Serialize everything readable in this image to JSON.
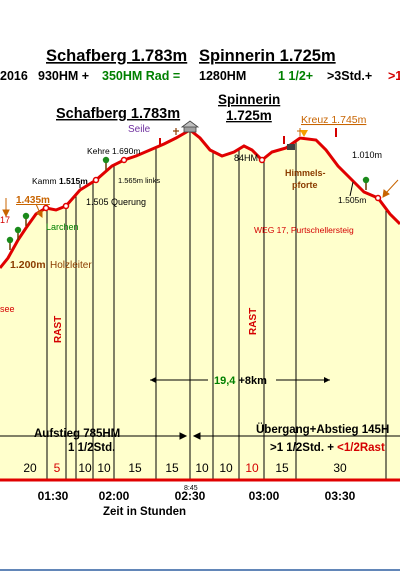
{
  "header": {
    "title_left": "Schafberg 1.783m",
    "title_right": "Spinnerin 1.725m",
    "line2": {
      "year": "2016",
      "hm_up": "930HM +",
      "hm_bike": "350HM Rad =",
      "hm_total": "1280HM",
      "time_green": "1 1/2+",
      "time_black": ">3Std.+",
      "time_red": ">1"
    }
  },
  "profile": {
    "peak1_title": "Schafberg 1.783m",
    "peak2_title_line1": "Spinnerin",
    "peak2_title_line2": "1.725m",
    "labels": {
      "seile": "Seile",
      "kehre": "Kehre 1.690m",
      "kamm_prefix": "Kamm",
      "kamm_value": "1.515m",
      "links": "1.565m links",
      "querung": "1.505 Querung",
      "h1435": "1.435m",
      "n17": "17",
      "larchen": "Larchen",
      "h1200": "1.200m",
      "holzleiter": "Holzleiter",
      "see": "see",
      "hm84": "84HM",
      "kreuz": "Kreuz 1.745m",
      "himmels1": "Himmels-",
      "himmels2": "pforte",
      "h1010": "1.010m",
      "h1505r": "1.505m",
      "weg17": "WEG 17, Purtschellersteig",
      "rast1": "RAST",
      "rast2": "RAST",
      "dist_green": "19,4",
      "dist_black": "+8km",
      "aufstieg1": "Aufstieg 785HM",
      "aufstieg2": "1 1/2Std.",
      "uebergang1": "Übergang+Abstieg 145H",
      "uebergang2_black": ">1 1/2Std. +",
      "uebergang2_red": "<1/2Rast",
      "time_small": "8:45",
      "x_title": "Zeit in Stunden"
    }
  },
  "segments": [
    {
      "label": "20",
      "color": "#000000"
    },
    {
      "label": "5",
      "color": "#d40000"
    },
    {
      "label": "10",
      "color": "#000000"
    },
    {
      "label": "10",
      "color": "#000000"
    },
    {
      "label": "15",
      "color": "#000000"
    },
    {
      "label": "15",
      "color": "#000000"
    },
    {
      "label": "10",
      "color": "#000000"
    },
    {
      "label": "10",
      "color": "#000000"
    },
    {
      "label": "10",
      "color": "#d40000"
    },
    {
      "label": "15",
      "color": "#000000"
    },
    {
      "label": "30",
      "color": "#000000"
    }
  ],
  "time_ticks": [
    "01:30",
    "02:00",
    "02:30",
    "03:00",
    "03:30"
  ],
  "colors": {
    "route": "#e00000",
    "fill": "#ffffcc",
    "green": "#008000",
    "red": "#d40000",
    "orange": "#c86400",
    "purple": "#7030a0",
    "brown": "#8b3c00"
  }
}
